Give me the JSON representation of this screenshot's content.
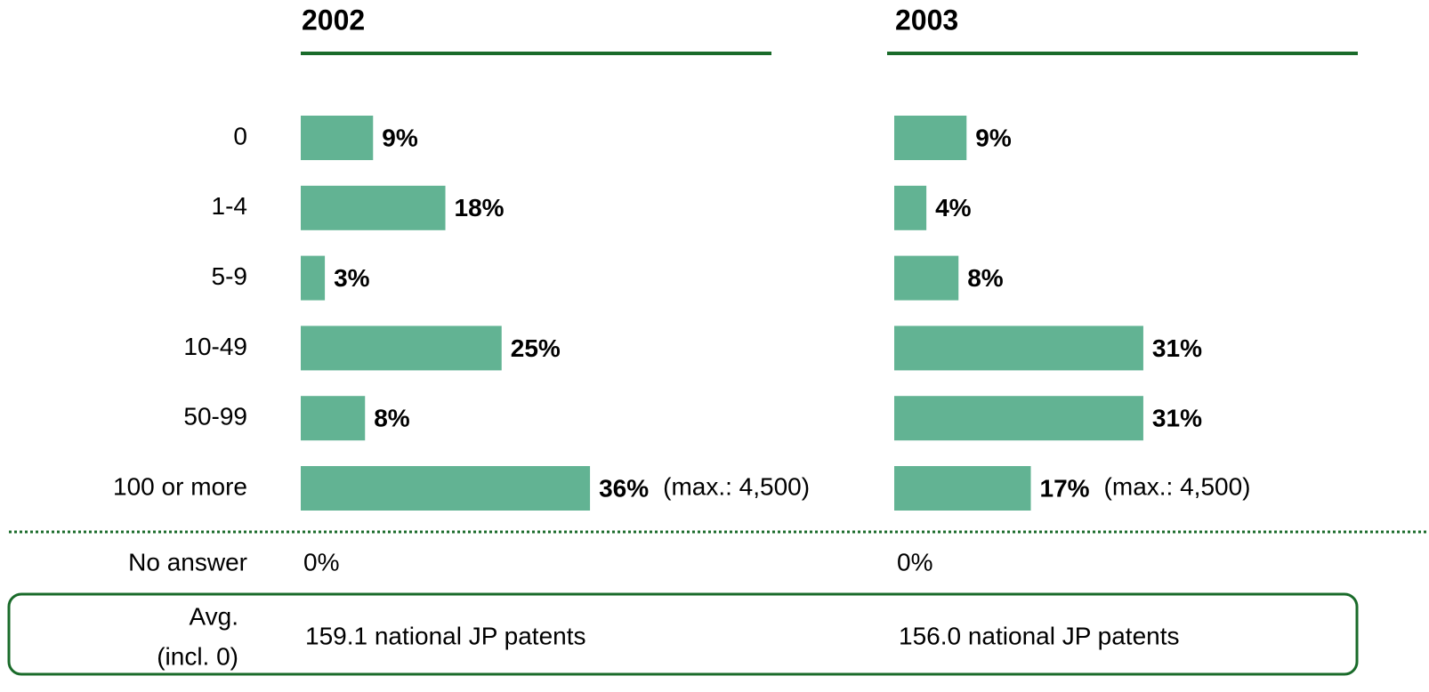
{
  "chart_data": {
    "type": "bar",
    "orientation": "horizontal",
    "categories": [
      "0",
      "1-4",
      "5-9",
      "10-49",
      "50-99",
      "100 or more"
    ],
    "series": [
      {
        "name": "2002",
        "color": "#62b393",
        "values": [
          9,
          18,
          3,
          25,
          8,
          36
        ],
        "value_labels": [
          "9%",
          "18%",
          "3%",
          "25%",
          "8%",
          "36%"
        ],
        "note": "(max.: 4,500)",
        "no_answer": "0%",
        "average": "159.1 national JP patents"
      },
      {
        "name": "2003",
        "color": "#62b393",
        "values": [
          9,
          4,
          8,
          31,
          31,
          17
        ],
        "value_labels": [
          "9%",
          "4%",
          "8%",
          "31%",
          "31%",
          "17%"
        ],
        "note": "(max.: 4,500)",
        "no_answer": "0%",
        "average": "156.0 national JP patents"
      }
    ],
    "no_answer_label": "No answer",
    "average_label": [
      "Avg.",
      "(incl. 0)"
    ]
  }
}
